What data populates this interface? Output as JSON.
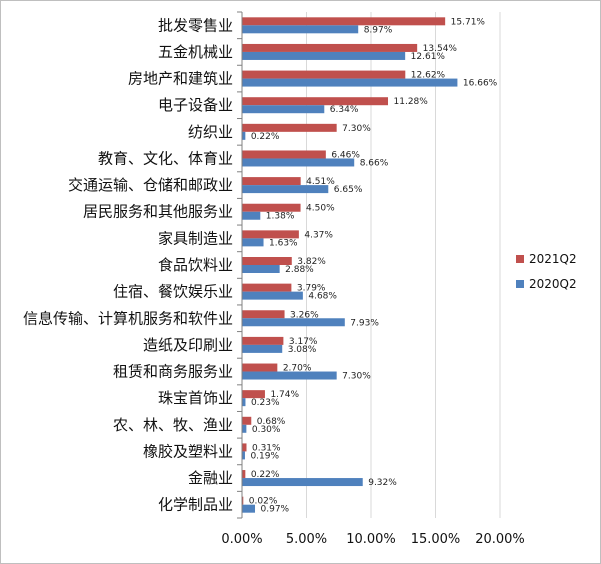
{
  "chart_data": {
    "type": "bar",
    "orientation": "horizontal",
    "categories": [
      "批发零售业",
      "五金机械业",
      "房地产和建筑业",
      "电子设备业",
      "纺织业",
      "教育、文化、体育业",
      "交通运输、仓储和邮政业",
      "居民服务和其他服务业",
      "家具制造业",
      "食品饮料业",
      "住宿、餐饮娱乐业",
      "信息传输、计算机服务和软件业",
      "造纸及印刷业",
      "租赁和商务服务业",
      "珠宝首饰业",
      "农、林、牧、渔业",
      "橡胶及塑料业",
      "金融业",
      "化学制品业"
    ],
    "series": [
      {
        "name": "2021Q2",
        "color": "#c0504d",
        "values": [
          15.71,
          13.54,
          12.62,
          11.28,
          7.3,
          6.46,
          4.51,
          4.5,
          4.37,
          3.82,
          3.79,
          3.26,
          3.17,
          2.7,
          1.74,
          0.68,
          0.31,
          0.22,
          0.02
        ],
        "labels": [
          "15.71%",
          "13.54%",
          "12.62%",
          "11.28%",
          "7.30%",
          "6.46%",
          "4.51%",
          "4.50%",
          "4.37%",
          "3.82%",
          "3.79%",
          "3.26%",
          "3.17%",
          "2.70%",
          "1.74%",
          "0.68%",
          "0.31%",
          "0.22%",
          "0.02%"
        ]
      },
      {
        "name": "2020Q2",
        "color": "#4f81bd",
        "values": [
          8.97,
          12.61,
          16.66,
          6.34,
          0.22,
          8.66,
          6.65,
          1.38,
          1.63,
          2.88,
          4.68,
          7.93,
          3.08,
          7.3,
          0.23,
          0.3,
          0.19,
          9.32,
          0.97
        ],
        "labels": [
          "8.97%",
          "12.61%",
          "16.66%",
          "6.34%",
          "0.22%",
          "8.66%",
          "6.65%",
          "1.38%",
          "1.63%",
          "2.88%",
          "4.68%",
          "7.93%",
          "3.08%",
          "7.30%",
          "0.23%",
          "0.30%",
          "0.19%",
          "9.32%",
          "0.97%"
        ]
      }
    ],
    "xlim": [
      0,
      20
    ],
    "x_ticks": [
      "0.00%",
      "5.00%",
      "10.00%",
      "15.00%",
      "20.00%"
    ],
    "grid": true,
    "legend_position": "right"
  }
}
